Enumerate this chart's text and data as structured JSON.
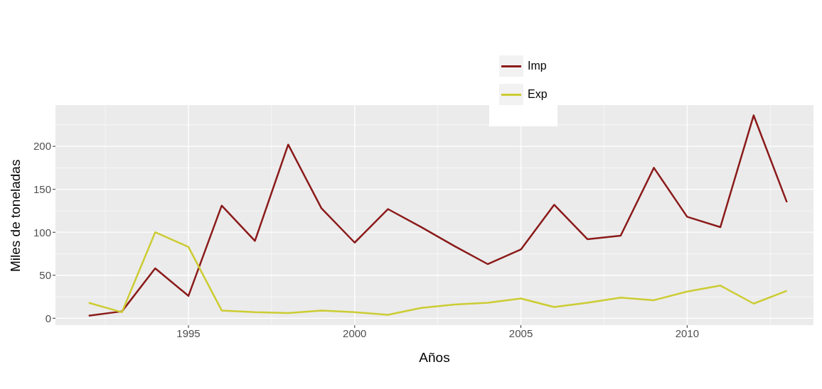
{
  "chart_data": {
    "type": "line",
    "xlabel": "Años",
    "ylabel": "Miles de toneladas",
    "x": [
      1992,
      1993,
      1994,
      1995,
      1996,
      1997,
      1998,
      1999,
      2000,
      2001,
      2002,
      2003,
      2004,
      2005,
      2006,
      2007,
      2008,
      2009,
      2010,
      2011,
      2012,
      2013
    ],
    "series": [
      {
        "name": "Imp",
        "color": "#8b1a1a",
        "values": [
          3,
          8,
          58,
          26,
          131,
          90,
          202,
          128,
          88,
          127,
          106,
          84,
          63,
          80,
          132,
          92,
          96,
          175,
          118,
          106,
          236,
          135
        ]
      },
      {
        "name": "Exp",
        "color": "#cccc33",
        "values": [
          18,
          7,
          100,
          83,
          9,
          7,
          6,
          9,
          7,
          4,
          12,
          16,
          18,
          23,
          13,
          18,
          24,
          21,
          31,
          38,
          17,
          32
        ]
      }
    ],
    "xlim": [
      1991.0,
      2013.8
    ],
    "xticks": [
      1995,
      2000,
      2005,
      2010
    ],
    "ylim": [
      -8,
      248
    ],
    "yticks": [
      0,
      50,
      100,
      150,
      200
    ],
    "grid": true,
    "legend": "top",
    "marker": "none",
    "line_style": "solid"
  }
}
